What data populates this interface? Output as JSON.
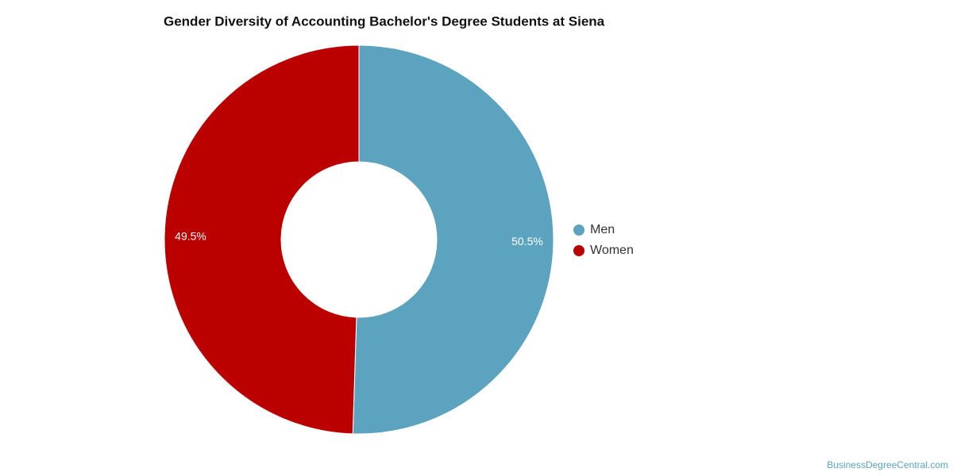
{
  "chart_data": {
    "type": "donut",
    "title": "Gender Diversity of Accounting Bachelor's Degree Students at Siena",
    "categories": [
      "Men",
      "Women"
    ],
    "values": [
      50.5,
      49.5
    ],
    "value_labels": [
      "50.5%",
      "49.5%"
    ],
    "colors": [
      "#5ba3bf",
      "#bb0000"
    ],
    "legend": "right",
    "watermark": "BusinessDegreeCentral.com"
  }
}
